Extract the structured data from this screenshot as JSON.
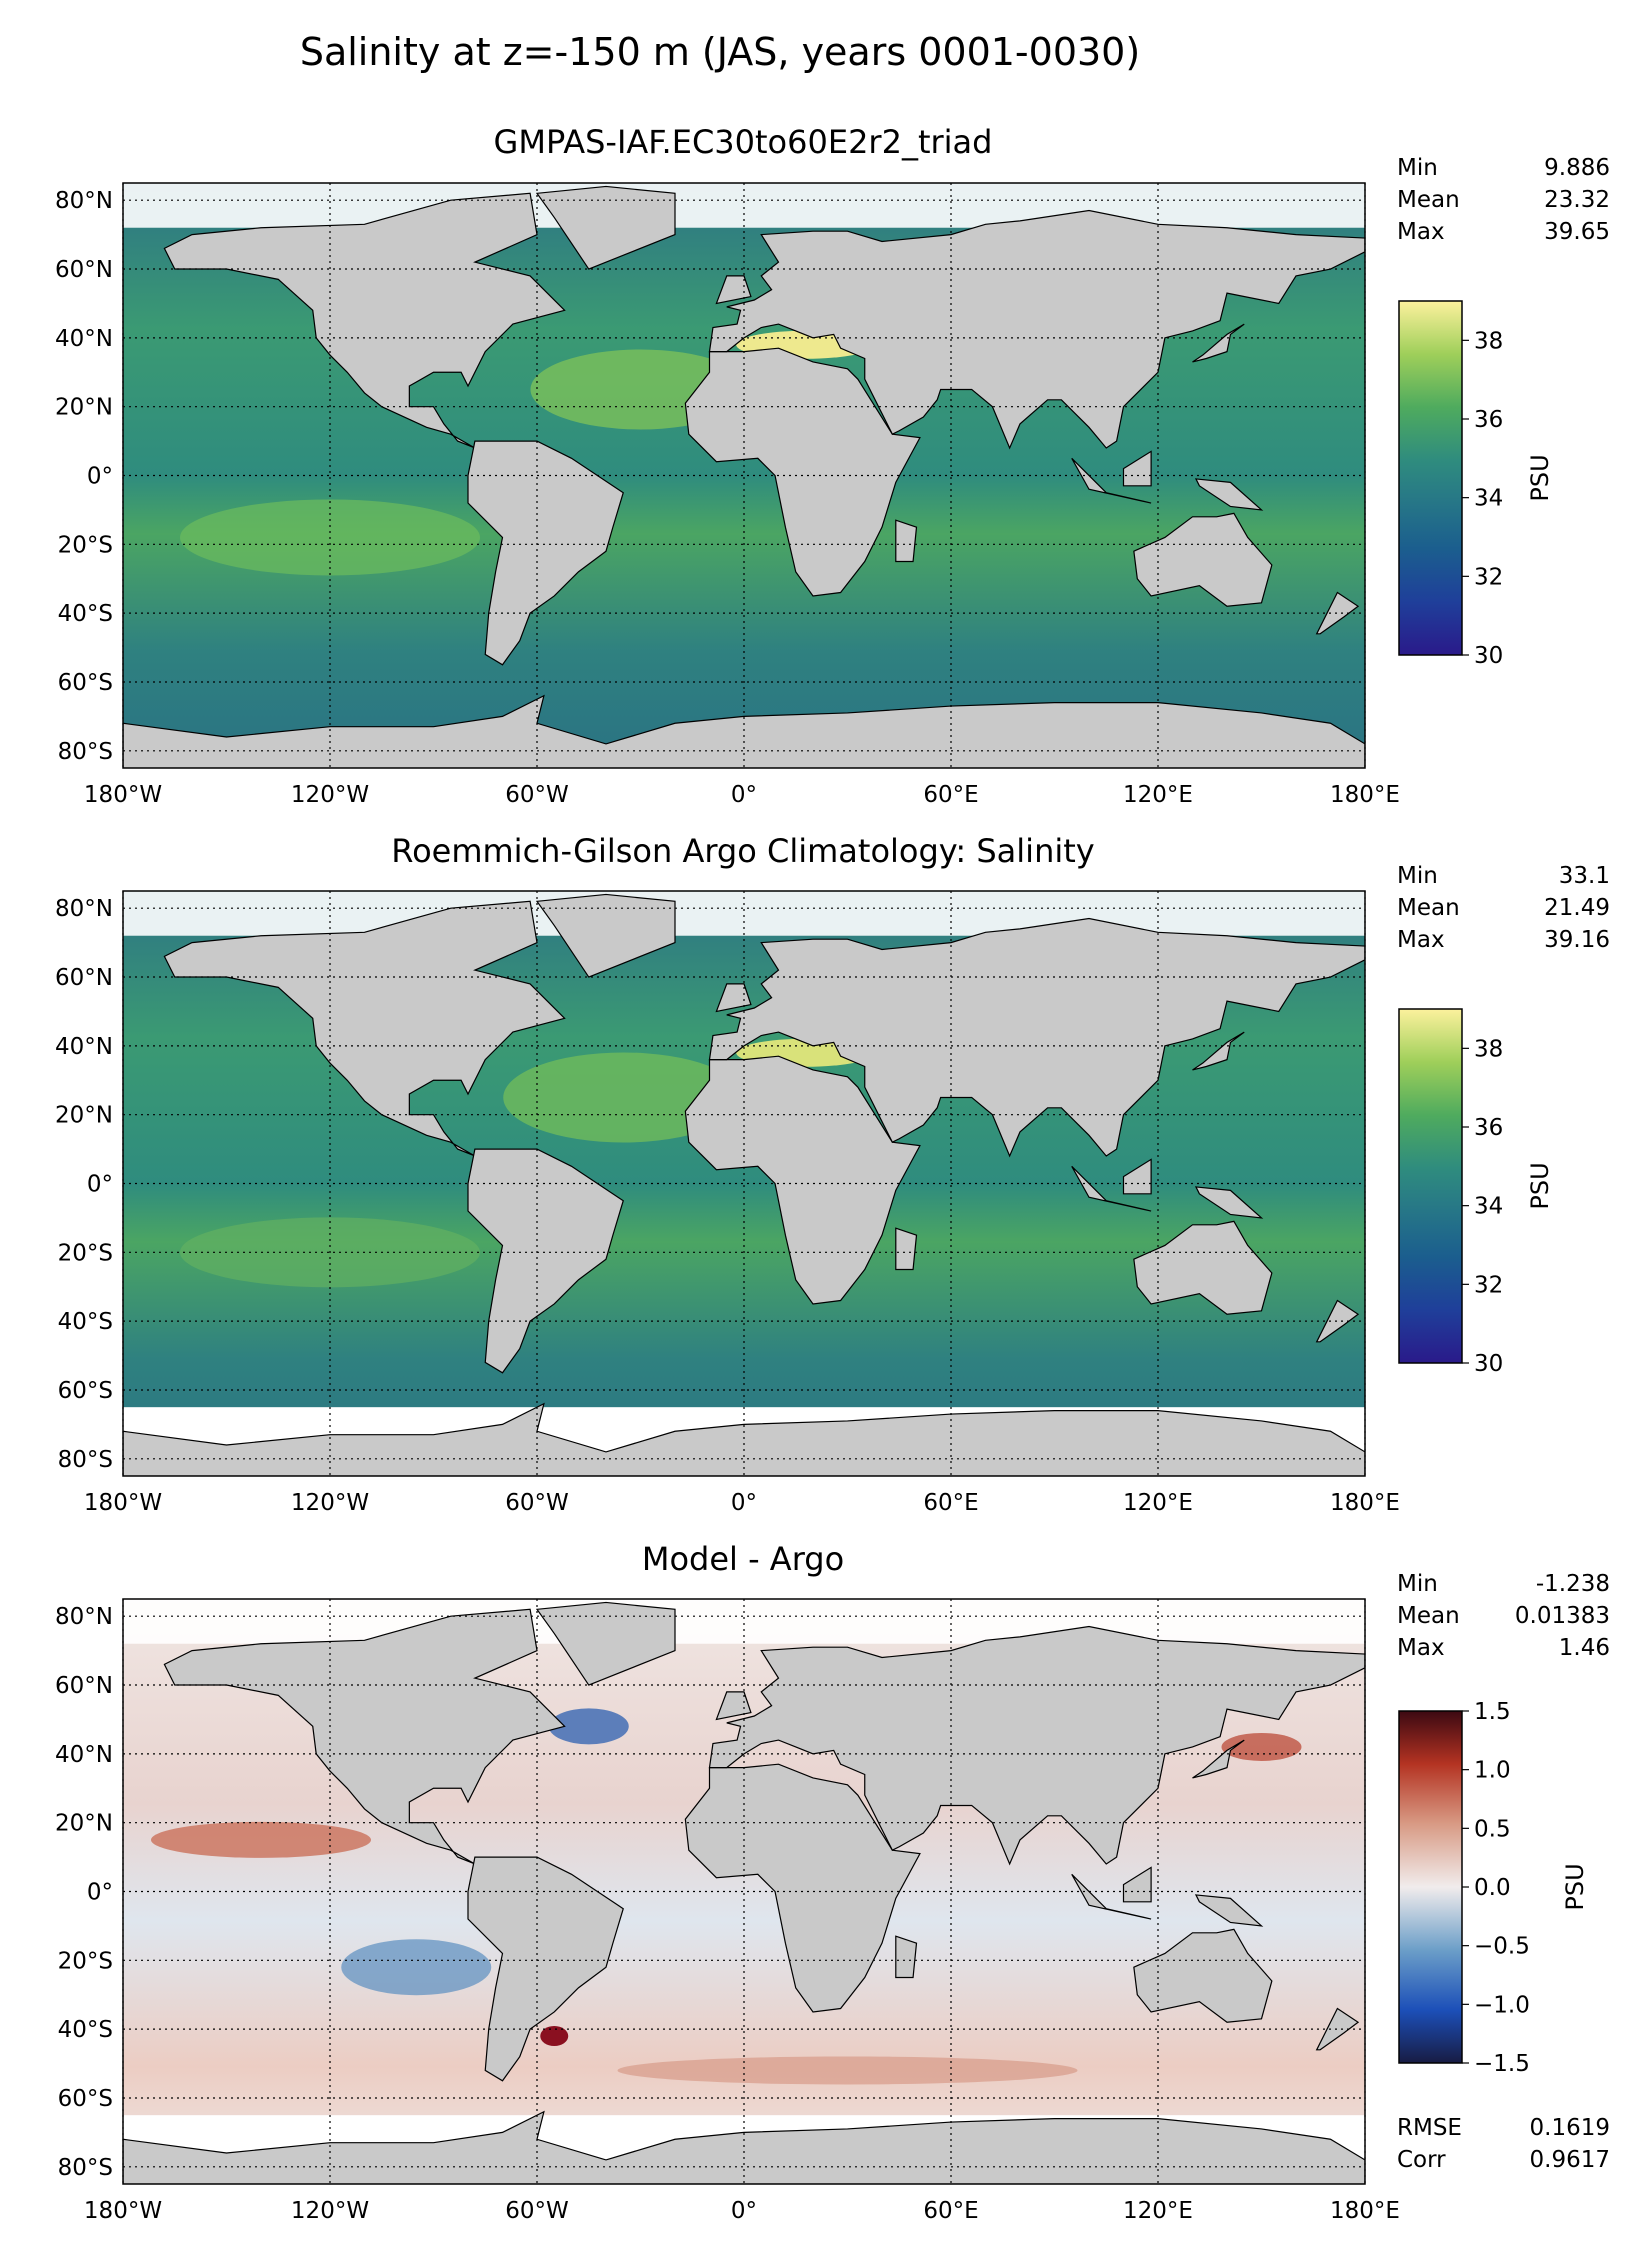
{
  "figure": {
    "title": "Salinity at z=-150 m (JAS, years 0001-0030)"
  },
  "colors": {
    "land": "#c9c9c9",
    "nodata": "#ffffff",
    "coast": "#000000"
  },
  "axis_ticks": {
    "lon": [
      "180°W",
      "120°W",
      "60°W",
      "0°",
      "60°E",
      "120°E",
      "180°E"
    ],
    "lat": [
      "80°N",
      "60°N",
      "40°N",
      "20°N",
      "0°",
      "20°S",
      "40°S",
      "60°S",
      "80°S"
    ]
  },
  "panels": [
    {
      "title": "GMPAS-IAF.EC30to60E2r2_triad",
      "stats": [
        {
          "label": "Min",
          "value": "9.886"
        },
        {
          "label": "Mean",
          "value": "23.32"
        },
        {
          "label": "Max",
          "value": "39.65"
        }
      ],
      "colorbar": {
        "label": "PSU",
        "ticks": [
          "30",
          "32",
          "34",
          "36",
          "38"
        ],
        "colormap": "haline"
      }
    },
    {
      "title": "Roemmich-Gilson Argo Climatology: Salinity",
      "stats": [
        {
          "label": "Min",
          "value": "33.1"
        },
        {
          "label": "Mean",
          "value": "21.49"
        },
        {
          "label": "Max",
          "value": "39.16"
        }
      ],
      "colorbar": {
        "label": "PSU",
        "ticks": [
          "30",
          "32",
          "34",
          "36",
          "38"
        ],
        "colormap": "haline"
      }
    },
    {
      "title": "Model - Argo",
      "stats": [
        {
          "label": "Min",
          "value": "-1.238"
        },
        {
          "label": "Mean",
          "value": "0.01383"
        },
        {
          "label": "Max",
          "value": "1.46"
        }
      ],
      "colorbar": {
        "label": "PSU",
        "ticks": [
          "1.5",
          "1.0",
          "0.5",
          "0.0",
          "−0.5",
          "−1.0",
          "−1.5"
        ],
        "colormap": "balance"
      },
      "extra_stats": [
        {
          "label": "RMSE",
          "value": "0.1619"
        },
        {
          "label": "Corr",
          "value": "0.9617"
        }
      ]
    }
  ],
  "chart_data": [
    {
      "type": "heatmap",
      "title": "GMPAS-IAF.EC30to60E2r2_triad",
      "projection": "plate carree",
      "xlim": [
        -180,
        180
      ],
      "ylim": [
        -85,
        85
      ],
      "grid": true,
      "colorbar_range": [
        30,
        39
      ],
      "colorbar_label": "PSU"
    },
    {
      "type": "heatmap",
      "title": "Roemmich-Gilson Argo Climatology: Salinity",
      "projection": "plate carree",
      "xlim": [
        -180,
        180
      ],
      "ylim": [
        -85,
        85
      ],
      "grid": true,
      "colorbar_range": [
        30,
        39
      ],
      "colorbar_label": "PSU"
    },
    {
      "type": "heatmap",
      "title": "Model - Argo",
      "projection": "plate carree",
      "xlim": [
        -180,
        180
      ],
      "ylim": [
        -85,
        85
      ],
      "grid": true,
      "colorbar_range": [
        -1.5,
        1.5
      ],
      "colorbar_label": "PSU"
    }
  ]
}
